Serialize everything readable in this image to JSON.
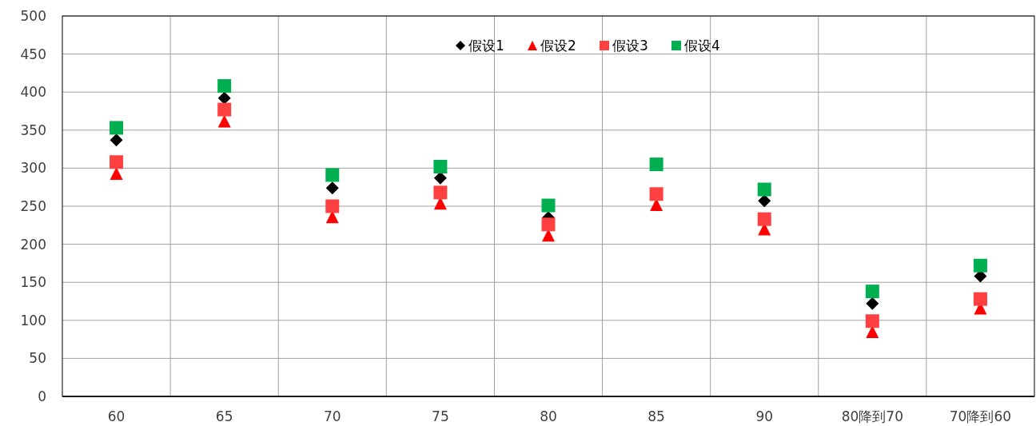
{
  "chart_data": {
    "type": "scatter",
    "categories": [
      "60",
      "65",
      "70",
      "75",
      "80",
      "85",
      "90",
      "80降到70",
      "70降到60"
    ],
    "series": [
      {
        "name": "假设1",
        "color": "#000000",
        "marker": "diamond",
        "values": [
          337,
          392,
          274,
          287,
          235,
          null,
          257,
          122,
          158
        ]
      },
      {
        "name": "假设2",
        "color": "#ff0000",
        "marker": "triangle",
        "values": [
          293,
          362,
          236,
          254,
          212,
          252,
          220,
          85,
          116
        ]
      },
      {
        "name": "假设3",
        "color": "#ff4040",
        "marker": "square",
        "values": [
          308,
          377,
          250,
          268,
          226,
          266,
          233,
          99,
          128
        ]
      },
      {
        "name": "假设4",
        "color": "#00b050",
        "marker": "square",
        "values": [
          353,
          408,
          291,
          302,
          251,
          305,
          272,
          138,
          172
        ]
      }
    ],
    "ylim": [
      0,
      500
    ],
    "yticks": [
      0,
      50,
      100,
      150,
      200,
      250,
      300,
      350,
      400,
      450,
      500
    ],
    "grid": true,
    "legend": "top"
  }
}
